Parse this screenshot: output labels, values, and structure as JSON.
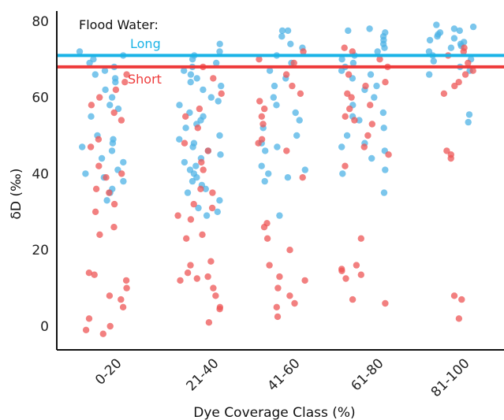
{
  "chart_data": {
    "type": "scatter",
    "title": "",
    "xlabel": "Dye Coverage Class (%)",
    "ylabel": "δD (‰)",
    "categories": [
      "0-20",
      "21-40",
      "41-60",
      "61-80",
      "81-100"
    ],
    "yticks": [
      "0",
      "20",
      "40",
      "60",
      "80"
    ],
    "ylim": [
      -3,
      80
    ],
    "grid": false,
    "legend": {
      "title": "Flood Water:",
      "placement": "top-left",
      "entries": [
        {
          "label": "Long",
          "color": "#1ab3e6"
        },
        {
          "label": "Short",
          "color": "#ee3b3b"
        }
      ]
    },
    "reference_lines": [
      {
        "name": "Long",
        "y": 71,
        "color": "#1ab3e6"
      },
      {
        "name": "Short",
        "y": 68,
        "color": "#ee3b3b"
      }
    ],
    "series": [
      {
        "name": "Long",
        "color": "#4fb3e5",
        "points": [
          {
            "c": "0-20",
            "y": [
              72,
              71,
              70,
              69,
              68,
              67,
              66,
              65,
              64,
              62,
              60,
              58,
              57,
              55,
              50,
              49,
              48,
              47,
              46,
              44,
              43,
              41,
              40,
              39,
              38,
              36,
              35,
              33
            ]
          },
          {
            "c": "21-40",
            "y": [
              74,
              72,
              71,
              70,
              69,
              68,
              67,
              66,
              65,
              64,
              63,
              62,
              60,
              59,
              58,
              56,
              55,
              54,
              53,
              52,
              50,
              49,
              48,
              47,
              46,
              45,
              44,
              43,
              42,
              41,
              40,
              39,
              38,
              37,
              36,
              35,
              33,
              31,
              30,
              29
            ]
          },
          {
            "c": "41-60",
            "y": [
              77.5,
              77.5,
              76,
              74,
              73,
              71,
              69,
              67,
              65,
              63,
              60,
              58,
              56,
              54,
              52,
              50,
              48,
              47,
              46,
              42,
              41,
              40,
              39,
              38,
              29
            ]
          },
          {
            "c": "61-80",
            "y": [
              78,
              77.5,
              77,
              76,
              75,
              74,
              73,
              72,
              71,
              70,
              69,
              68,
              67,
              66,
              65,
              63,
              62,
              60,
              58,
              56,
              55,
              54,
              52,
              50,
              48,
              47,
              46,
              44,
              41,
              40,
              35
            ]
          },
          {
            "c": "81-100",
            "y": [
              79,
              78.5,
              78,
              77.5,
              77,
              76.5,
              76,
              75.5,
              75,
              74.5,
              74,
              73.5,
              73,
              72,
              71,
              70,
              69.5,
              68,
              67,
              66,
              55.5,
              53.5
            ]
          }
        ]
      },
      {
        "name": "Short",
        "color": "#ee5555",
        "points": [
          {
            "c": "0-20",
            "y": [
              66,
              64,
              62,
              60,
              58,
              56,
              54,
              49,
              47,
              42,
              40,
              39,
              36,
              35,
              32,
              30,
              26,
              24,
              14,
              13.5,
              12,
              10,
              8,
              7,
              5,
              2,
              0,
              -1,
              -2
            ]
          },
          {
            "c": "21-40",
            "y": [
              68,
              65,
              61,
              57,
              55,
              52,
              48,
              46,
              43,
              41,
              36,
              35,
              32,
              31,
              29,
              28,
              24,
              23,
              17,
              16,
              14,
              13,
              12.5,
              12,
              10,
              8,
              5,
              4.5,
              1
            ]
          },
          {
            "c": "41-60",
            "y": [
              72,
              70,
              69,
              66,
              63,
              61,
              59,
              57,
              55,
              53,
              49,
              48,
              46,
              39,
              27,
              26,
              23,
              20,
              16,
              13,
              12,
              10,
              8,
              6,
              5,
              2.5
            ]
          },
          {
            "c": "61-80",
            "y": [
              73,
              72,
              70,
              68,
              66,
              64,
              63,
              61,
              60,
              58,
              57,
              55,
              54,
              53,
              50,
              47,
              45,
              42,
              23,
              16,
              15,
              14.5,
              13.5,
              12.5,
              7,
              6
            ]
          },
          {
            "c": "81-100",
            "y": [
              73,
              72,
              71,
              69,
              67,
              66,
              64,
              63,
              61,
              46,
              45,
              44,
              8,
              7,
              2
            ]
          }
        ]
      }
    ]
  }
}
